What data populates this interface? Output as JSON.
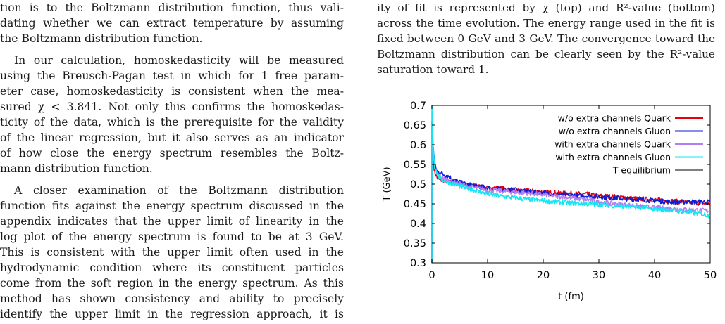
{
  "left_column": {
    "p1_lines": [
      "tion is to the Boltzmann distribution function, thus vali-",
      "dating whether we can extract temperature by assuming",
      "the Boltzmann distribution function."
    ],
    "p2_lines": [
      "In our calculation, homoskedasticity will be measured",
      "using the Breusch-Pagan test in which for 1 free param-",
      "eter case, homoskedasticity is consistent when the mea-",
      "sured χ < 3.841. Not only this confirms the homoskedas-",
      "ticity of the data, which is the prerequisite for the validity",
      "of the linear regression, but it also serves as an indicator",
      "of how close the energy spectrum resembles the Boltz-",
      "mann distribution function."
    ],
    "p3_lines": [
      "A closer examination of the Boltzmann distribution",
      "function fits against the energy spectrum discussed in the",
      "appendix indicates that the upper limit of linearity in the",
      "log plot of the energy spectrum is found to be at 3 GeV.",
      "This is consistent with the upper limit often used in the",
      "hydrodynamic condition where its constituent particles",
      "come from the soft region in the energy spectrum. As this",
      "method has shown consistency and ability to precisely",
      "identify the upper limit in the regression approach, it is"
    ]
  },
  "right_column": {
    "caption_lines": [
      "ity of fit is represented by χ (top) and R²-value (bottom)",
      "across the time evolution. The energy range used in the fit is",
      "fixed between 0 GeV and 3 GeV. The convergence toward the",
      "Boltzmann distribution can be clearly seen by the R²-value",
      "saturation toward 1."
    ]
  },
  "chart_data": {
    "type": "line",
    "xlabel": "t (fm)",
    "ylabel": "T (GeV)",
    "xlim": [
      0,
      50
    ],
    "ylim": [
      0.3,
      0.7
    ],
    "x_ticks": [
      "0",
      "10",
      "20",
      "30",
      "40",
      "50"
    ],
    "y_ticks": [
      "0.3",
      "0.35",
      "0.4",
      "0.45",
      "0.5",
      "0.55",
      "0.6",
      "0.65",
      "0.7"
    ],
    "legend_position": "top-right",
    "series": [
      {
        "name": "w/o extra channels Quark",
        "color": "#e8000b",
        "x": [
          0,
          0.2,
          0.5,
          1,
          1.5,
          2,
          3,
          4,
          5,
          6,
          8,
          10,
          12,
          15,
          18,
          20,
          22,
          25,
          28,
          30,
          33,
          35,
          38,
          40,
          43,
          45,
          48,
          50
        ],
        "y": [
          0.6,
          0.56,
          0.53,
          0.515,
          0.51,
          0.51,
          0.505,
          0.505,
          0.5,
          0.5,
          0.495,
          0.49,
          0.49,
          0.485,
          0.482,
          0.48,
          0.478,
          0.476,
          0.474,
          0.47,
          0.468,
          0.465,
          0.462,
          0.46,
          0.457,
          0.455,
          0.452,
          0.45
        ]
      },
      {
        "name": "w/o extra channels Gluon",
        "color": "#0a1fd6",
        "x": [
          0,
          0.2,
          0.5,
          1,
          1.5,
          2,
          3,
          4,
          5,
          6,
          8,
          10,
          12,
          15,
          18,
          20,
          22,
          25,
          28,
          30,
          33,
          35,
          38,
          40,
          43,
          45,
          48,
          50
        ],
        "y": [
          0.66,
          0.6,
          0.55,
          0.53,
          0.53,
          0.525,
          0.52,
          0.51,
          0.505,
          0.5,
          0.495,
          0.49,
          0.488,
          0.484,
          0.48,
          0.478,
          0.475,
          0.472,
          0.47,
          0.468,
          0.465,
          0.463,
          0.46,
          0.458,
          0.455,
          0.455,
          0.455,
          0.455
        ]
      },
      {
        "name": "with extra channels Quark",
        "color": "#b27ef2",
        "x": [
          0,
          0.2,
          0.5,
          1,
          1.5,
          2,
          3,
          4,
          5,
          6,
          8,
          10,
          12,
          15,
          18,
          20,
          22,
          25,
          28,
          30,
          33,
          35,
          38,
          40,
          43,
          45,
          48,
          50
        ],
        "y": [
          0.66,
          0.58,
          0.54,
          0.525,
          0.52,
          0.515,
          0.51,
          0.505,
          0.5,
          0.495,
          0.49,
          0.485,
          0.483,
          0.48,
          0.476,
          0.473,
          0.47,
          0.465,
          0.46,
          0.455,
          0.45,
          0.447,
          0.443,
          0.44,
          0.438,
          0.436,
          0.434,
          0.432
        ]
      },
      {
        "name": "with extra channels Gluon",
        "color": "#17e6f2",
        "x": [
          0,
          0.2,
          0.5,
          1,
          1.5,
          2,
          3,
          4,
          5,
          6,
          8,
          10,
          12,
          15,
          18,
          20,
          22,
          25,
          28,
          30,
          33,
          35,
          38,
          40,
          43,
          45,
          48,
          50
        ],
        "y": [
          0.7,
          0.6,
          0.545,
          0.525,
          0.515,
          0.51,
          0.505,
          0.5,
          0.495,
          0.49,
          0.483,
          0.475,
          0.47,
          0.465,
          0.46,
          0.458,
          0.455,
          0.452,
          0.45,
          0.448,
          0.445,
          0.443,
          0.44,
          0.437,
          0.434,
          0.43,
          0.425,
          0.42
        ]
      },
      {
        "name": "T equilibrium",
        "color": "#000000",
        "x": [
          0,
          50
        ],
        "y": [
          0.442,
          0.442
        ]
      }
    ]
  }
}
